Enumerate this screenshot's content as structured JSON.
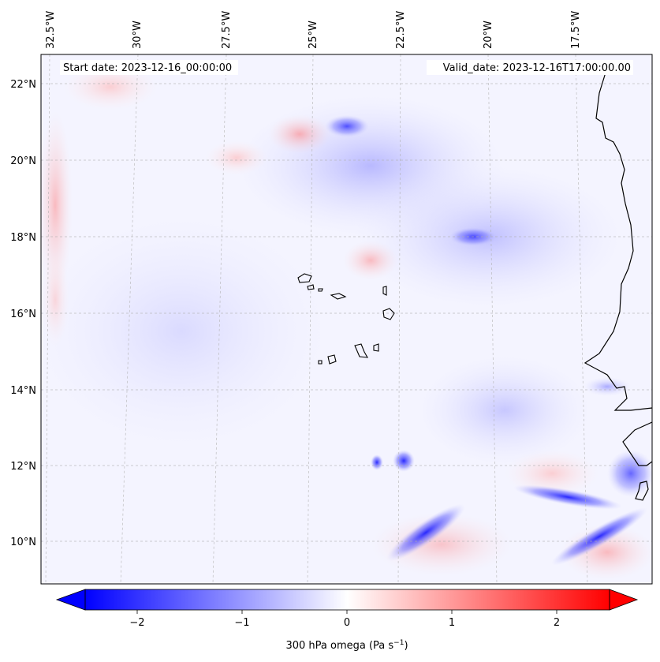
{
  "map": {
    "start_date": "Start date: 2023-12-16_00:00:00",
    "valid_date": "Valid_date: 2023-12-16T17:00:00.00",
    "lon_labels": [
      "32.5°W",
      "30°W",
      "27.5°W",
      "25°W",
      "22.5°W",
      "20°W",
      "17.5°W"
    ],
    "lat_labels": [
      "22°N",
      "20°N",
      "18°N",
      "16°N",
      "14°N",
      "12°N",
      "10°N"
    ],
    "colorbar": {
      "label_main": "300 hPa omega (Pa s",
      "label_exp": "−1",
      "label_close": ")",
      "ticks": [
        "−2",
        "−1",
        "0",
        "1",
        "2"
      ],
      "colors": {
        "negative": "#0000ff",
        "zero": "#ffffff",
        "positive": "#ff0000"
      }
    },
    "colors": {
      "coastline": "#000000",
      "gridline": "#b0b0b0"
    }
  }
}
